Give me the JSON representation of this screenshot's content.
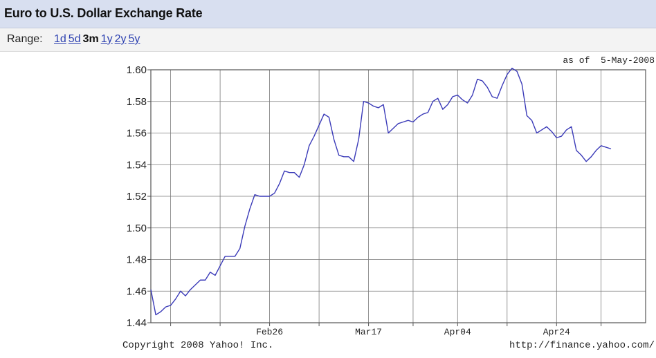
{
  "header": {
    "title": "Euro to U.S. Dollar Exchange Rate"
  },
  "range": {
    "label": "Range:",
    "options": [
      {
        "label": "1d",
        "active": false
      },
      {
        "label": "5d",
        "active": false
      },
      {
        "label": "3m",
        "active": true
      },
      {
        "label": "1y",
        "active": false
      },
      {
        "label": "2y",
        "active": false
      },
      {
        "label": "5y",
        "active": false
      }
    ]
  },
  "as_of": "as of  5-May-2008",
  "footer": {
    "copyright": "Copyright 2008 Yahoo! Inc.",
    "url": "http://finance.yahoo.com/"
  },
  "colors": {
    "line": "#3a3ab8",
    "grid": "#7a7a7a",
    "frame": "#555555"
  },
  "chart_data": {
    "type": "line",
    "title": "Euro to U.S. Dollar Exchange Rate",
    "xlabel": "",
    "ylabel": "",
    "ylim": [
      1.44,
      1.6
    ],
    "ytick_labels": [
      "1.60",
      "1.58",
      "1.56",
      "1.54",
      "1.52",
      "1.50",
      "1.48",
      "1.46",
      "1.44"
    ],
    "yticks": [
      1.6,
      1.58,
      1.56,
      1.54,
      1.52,
      1.5,
      1.48,
      1.46,
      1.44
    ],
    "xtick_labels": [
      "Feb26",
      "Mar17",
      "Apr04",
      "Apr24"
    ],
    "xtick_positions": [
      24,
      44,
      62,
      82
    ],
    "xlim": [
      0,
      100
    ],
    "grid": true,
    "series": [
      {
        "x": [
          0,
          1,
          2,
          3,
          4,
          5,
          6,
          7,
          8,
          9,
          10,
          11,
          12,
          13,
          14,
          15,
          16,
          17,
          18,
          19,
          20,
          21,
          22,
          23,
          24,
          25,
          26,
          27,
          28,
          29,
          30,
          31,
          32,
          33,
          34,
          35,
          36,
          37,
          38,
          39,
          40,
          41,
          42,
          43,
          44,
          45,
          46,
          47,
          48,
          49,
          50,
          51,
          52,
          53,
          54,
          55,
          56,
          57,
          58,
          59,
          60,
          61,
          62,
          63,
          64,
          65,
          66,
          67,
          68,
          69,
          70,
          71,
          72,
          73,
          74,
          75,
          76,
          77,
          78,
          79,
          80,
          81,
          82,
          83,
          84,
          85,
          86,
          87,
          88,
          89,
          90,
          91,
          92,
          93
        ],
        "values": [
          1.461,
          1.445,
          1.447,
          1.45,
          1.451,
          1.455,
          1.46,
          1.457,
          1.461,
          1.464,
          1.467,
          1.467,
          1.472,
          1.47,
          1.476,
          1.482,
          1.482,
          1.482,
          1.487,
          1.501,
          1.512,
          1.521,
          1.52,
          1.52,
          1.52,
          1.522,
          1.528,
          1.536,
          1.535,
          1.535,
          1.532,
          1.54,
          1.552,
          1.558,
          1.565,
          1.572,
          1.57,
          1.556,
          1.546,
          1.545,
          1.545,
          1.542,
          1.556,
          1.58,
          1.579,
          1.577,
          1.576,
          1.578,
          1.56,
          1.563,
          1.566,
          1.567,
          1.568,
          1.567,
          1.57,
          1.572,
          1.573,
          1.58,
          1.582,
          1.575,
          1.578,
          1.583,
          1.584,
          1.581,
          1.579,
          1.584,
          1.594,
          1.593,
          1.589,
          1.583,
          1.582,
          1.59,
          1.597,
          1.601,
          1.599,
          1.591,
          1.571,
          1.568,
          1.56,
          1.562,
          1.564,
          1.561,
          1.557,
          1.558,
          1.562,
          1.564,
          1.549,
          1.546,
          1.542,
          1.545,
          1.549,
          1.552,
          1.551,
          1.55
        ]
      }
    ]
  }
}
